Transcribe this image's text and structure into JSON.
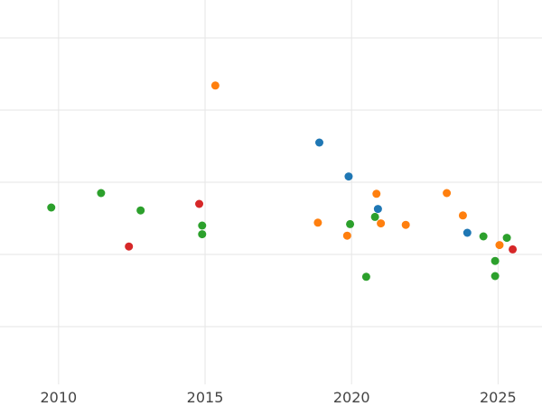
{
  "chart_data": {
    "type": "scatter",
    "title": "",
    "xlabel": "",
    "ylabel": "",
    "xlim": [
      2008,
      2026.5
    ],
    "ylim": [
      0,
      5.2
    ],
    "x_ticks": [
      2010,
      2015,
      2020,
      2025
    ],
    "x_tick_labels": [
      "2010",
      "2015",
      "2020",
      "2025"
    ],
    "y_gridlines": [
      0.8,
      1.8,
      2.8,
      3.8,
      4.8
    ],
    "grid": true,
    "legend": "none",
    "series": [
      {
        "color": "#1f77b4",
        "points": [
          [
            2018.9,
            3.35
          ],
          [
            2019.9,
            2.88
          ],
          [
            2020.9,
            2.43
          ],
          [
            2023.95,
            2.1
          ]
        ]
      },
      {
        "color": "#ff7f0e",
        "points": [
          [
            2015.35,
            4.14
          ],
          [
            2020.85,
            2.64
          ],
          [
            2023.25,
            2.65
          ],
          [
            2023.8,
            2.34
          ],
          [
            2018.85,
            2.24
          ],
          [
            2021.0,
            2.23
          ],
          [
            2021.85,
            2.21
          ],
          [
            2019.85,
            2.06
          ],
          [
            2025.05,
            1.93
          ]
        ]
      },
      {
        "color": "#2ca02c",
        "points": [
          [
            2009.75,
            2.45
          ],
          [
            2011.45,
            2.65
          ],
          [
            2012.8,
            2.41
          ],
          [
            2014.9,
            2.2
          ],
          [
            2014.9,
            2.08
          ],
          [
            2019.95,
            2.22
          ],
          [
            2020.8,
            2.32
          ],
          [
            2024.5,
            2.05
          ],
          [
            2025.3,
            2.03
          ],
          [
            2024.9,
            1.71
          ],
          [
            2024.9,
            1.5
          ],
          [
            2020.5,
            1.49
          ]
        ]
      },
      {
        "color": "#d62728",
        "points": [
          [
            2012.4,
            1.91
          ],
          [
            2014.8,
            2.5
          ],
          [
            2025.5,
            1.87
          ]
        ]
      }
    ]
  }
}
